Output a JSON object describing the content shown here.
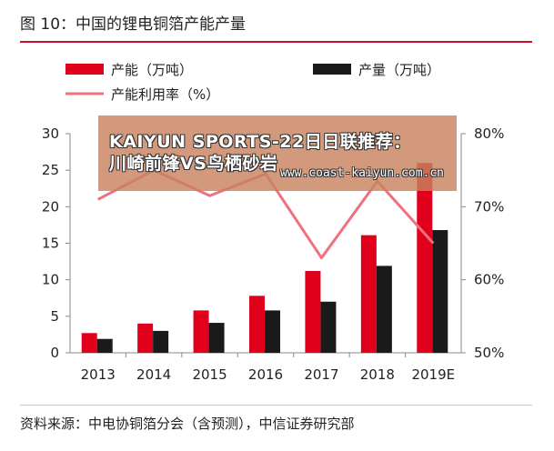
{
  "figure": {
    "title": "图 10：中国的锂电铜箔产能产量",
    "source": "资料来源：中电协铜箔分会（含预测），中信证券研究部"
  },
  "banner": {
    "line1": "KAIYUN SPORTS-22日日联推荐：",
    "line2": "川崎前锋VS鸟栖砂岩",
    "url": "www.coast-kaiyun.com.cn"
  },
  "colors": {
    "capacity": "#e0001b",
    "output": "#1a1a1a",
    "rate": "#f07080",
    "accent": "#c8102e"
  },
  "chart_data": {
    "type": "bar",
    "categories": [
      "2013",
      "2014",
      "2015",
      "2016",
      "2017",
      "2018",
      "2019E"
    ],
    "series": [
      {
        "name": "产能（万吨）",
        "kind": "bar",
        "axis": "left",
        "values": [
          2.7,
          4.0,
          5.8,
          7.8,
          11.2,
          16.1,
          26.0
        ]
      },
      {
        "name": "产量（万吨）",
        "kind": "bar",
        "axis": "left",
        "values": [
          1.9,
          3.0,
          4.1,
          5.8,
          7.0,
          11.9,
          16.8
        ]
      },
      {
        "name": "产能利用率（%）",
        "kind": "line",
        "axis": "right",
        "values": [
          71,
          75,
          71.5,
          74.5,
          63,
          73.5,
          65
        ]
      }
    ],
    "left_axis": {
      "ylim": [
        0,
        30
      ],
      "ticks": [
        "0",
        "5",
        "10",
        "15",
        "20",
        "25",
        "30"
      ]
    },
    "right_axis": {
      "ylim": [
        50,
        80
      ],
      "ticks": [
        "50%",
        "60%",
        "70%",
        "80%"
      ]
    },
    "legend": "top-left",
    "grid": false
  }
}
